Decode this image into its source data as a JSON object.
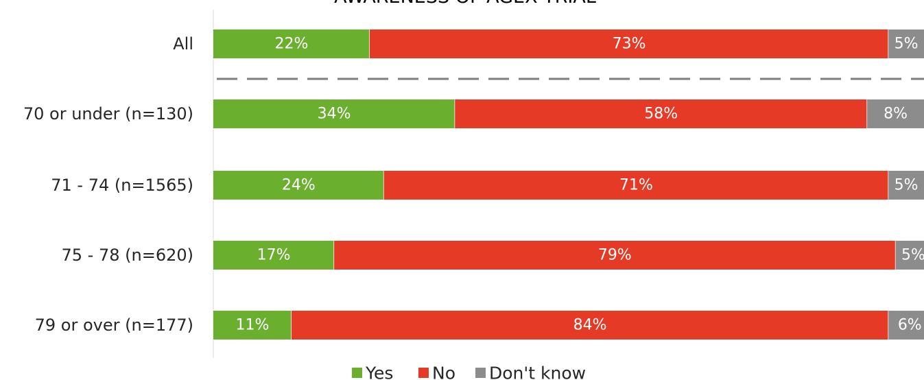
{
  "chart_data": {
    "type": "bar",
    "orientation": "horizontal",
    "stacked": true,
    "title": "AWARENESS OF AGEX TRIAL",
    "categories": [
      "All",
      "70 or under (n=130)",
      "71 - 74 (n=1565)",
      "75 - 78 (n=620)",
      "79 or over (n=177)"
    ],
    "series": [
      {
        "name": "Yes",
        "color": "#6aaf2e",
        "values": [
          22,
          34,
          24,
          17,
          11
        ]
      },
      {
        "name": "No",
        "color": "#e43a26",
        "values": [
          73,
          58,
          71,
          79,
          84
        ]
      },
      {
        "name": "Don't know",
        "color": "#8c8c8c",
        "values": [
          5,
          8,
          5,
          5,
          6
        ]
      }
    ],
    "value_labels": [
      [
        "22%",
        "73%",
        "5%"
      ],
      [
        "34%",
        "58%",
        "8%"
      ],
      [
        "24%",
        "71%",
        "5%"
      ],
      [
        "17%",
        "79%",
        "5%"
      ],
      [
        "11%",
        "84%",
        "6%"
      ]
    ],
    "xlim": [
      0,
      100
    ],
    "unit": "%",
    "legend_position": "bottom",
    "separator_after_category": "All",
    "grid": false
  }
}
